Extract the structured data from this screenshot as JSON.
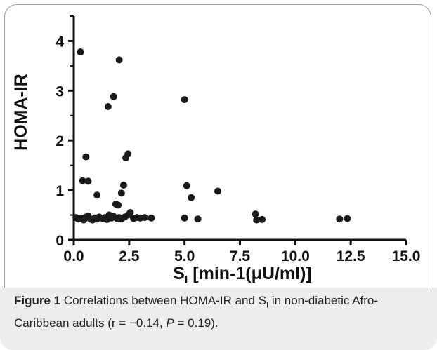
{
  "chart_data": {
    "type": "scatter",
    "ylabel": "HOMA-IR",
    "xlabel": {
      "main": "S",
      "sub": "I",
      "rest": " [min-1(μU/ml)]"
    },
    "xlim": [
      0,
      15
    ],
    "ylim": [
      0,
      4.5
    ],
    "xticks": [
      "0.0",
      "2.5",
      "5.0",
      "7.5",
      "10.0",
      "12.5",
      "15.0"
    ],
    "yticks": [
      "0",
      "1",
      "2",
      "3",
      "4"
    ],
    "grid": false,
    "legend": "none",
    "marker_color": "#1a1a1a",
    "points": [
      {
        "x": 0.3,
        "y": 3.78
      },
      {
        "x": 2.05,
        "y": 3.62
      },
      {
        "x": 1.8,
        "y": 2.88
      },
      {
        "x": 1.55,
        "y": 2.68
      },
      {
        "x": 5.0,
        "y": 2.82
      },
      {
        "x": 2.45,
        "y": 1.73
      },
      {
        "x": 2.35,
        "y": 1.65
      },
      {
        "x": 0.55,
        "y": 1.67
      },
      {
        "x": 0.4,
        "y": 1.19
      },
      {
        "x": 0.65,
        "y": 1.18
      },
      {
        "x": 2.25,
        "y": 1.1
      },
      {
        "x": 5.1,
        "y": 1.09
      },
      {
        "x": 6.5,
        "y": 0.98
      },
      {
        "x": 2.15,
        "y": 0.94
      },
      {
        "x": 1.05,
        "y": 0.9
      },
      {
        "x": 5.3,
        "y": 0.85
      },
      {
        "x": 2.0,
        "y": 0.7
      },
      {
        "x": 1.9,
        "y": 0.72
      },
      {
        "x": 0.1,
        "y": 0.45
      },
      {
        "x": 0.2,
        "y": 0.42
      },
      {
        "x": 0.35,
        "y": 0.44
      },
      {
        "x": 0.45,
        "y": 0.4
      },
      {
        "x": 0.55,
        "y": 0.46
      },
      {
        "x": 0.65,
        "y": 0.48
      },
      {
        "x": 0.75,
        "y": 0.42
      },
      {
        "x": 0.85,
        "y": 0.4
      },
      {
        "x": 0.95,
        "y": 0.44
      },
      {
        "x": 1.05,
        "y": 0.42
      },
      {
        "x": 1.15,
        "y": 0.46
      },
      {
        "x": 1.3,
        "y": 0.43
      },
      {
        "x": 1.4,
        "y": 0.45
      },
      {
        "x": 1.5,
        "y": 0.41
      },
      {
        "x": 1.6,
        "y": 0.5
      },
      {
        "x": 1.7,
        "y": 0.44
      },
      {
        "x": 1.8,
        "y": 0.47
      },
      {
        "x": 1.95,
        "y": 0.43
      },
      {
        "x": 2.05,
        "y": 0.45
      },
      {
        "x": 2.15,
        "y": 0.42
      },
      {
        "x": 2.3,
        "y": 0.46
      },
      {
        "x": 2.45,
        "y": 0.5
      },
      {
        "x": 2.55,
        "y": 0.55
      },
      {
        "x": 2.7,
        "y": 0.43
      },
      {
        "x": 2.85,
        "y": 0.45
      },
      {
        "x": 3.0,
        "y": 0.44
      },
      {
        "x": 3.2,
        "y": 0.45
      },
      {
        "x": 3.5,
        "y": 0.44
      },
      {
        "x": 5.0,
        "y": 0.44
      },
      {
        "x": 5.6,
        "y": 0.42
      },
      {
        "x": 8.2,
        "y": 0.52
      },
      {
        "x": 8.25,
        "y": 0.4
      },
      {
        "x": 8.5,
        "y": 0.41
      },
      {
        "x": 12.0,
        "y": 0.42
      },
      {
        "x": 12.35,
        "y": 0.43
      }
    ]
  },
  "caption": {
    "label": "Figure 1",
    "text_before": " Correlations between HOMA-IR and S",
    "sub": "I",
    "text_after": " in non-diabetic Afro-Caribbean adults (r = −0.14, ",
    "p_symbol": "P",
    "p_value": " = 0.19)."
  }
}
